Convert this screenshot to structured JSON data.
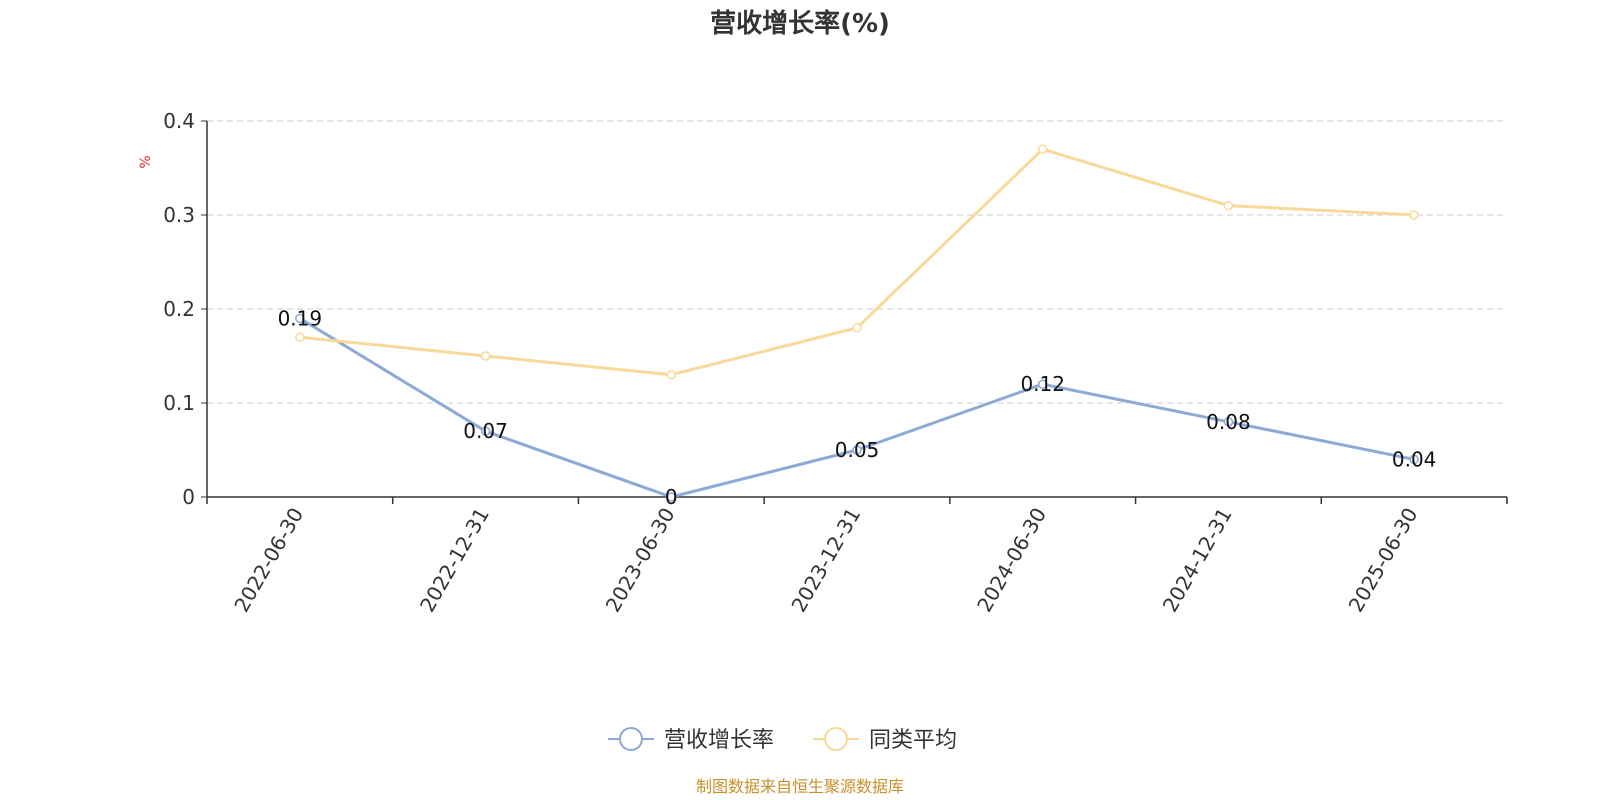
{
  "chart_data": {
    "type": "line",
    "title": "营收增长率(%)",
    "ylabel": "%",
    "ylim": [
      0,
      0.4
    ],
    "yticks": [
      "0",
      "0.1",
      "0.2",
      "0.3",
      "0.4"
    ],
    "grid": true,
    "legend_position": "bottom",
    "categories": [
      "2022-06-30",
      "2022-12-31",
      "2023-06-30",
      "2023-12-31",
      "2024-06-30",
      "2024-12-31",
      "2025-06-30"
    ],
    "series": [
      {
        "name": "营收增长率",
        "values": [
          0.19,
          0.07,
          0,
          0.05,
          0.12,
          0.08,
          0.04
        ],
        "labels": [
          "0.19",
          "0.07",
          "0",
          "0.05",
          "0.12",
          "0.08",
          "0.04"
        ],
        "color": "#8caad6"
      },
      {
        "name": "同类平均",
        "values": [
          0.17,
          0.15,
          0.13,
          0.18,
          0.37,
          0.31,
          0.3
        ],
        "color": "#f9d99a"
      }
    ]
  },
  "source": "制图数据来自恒生聚源数据库"
}
